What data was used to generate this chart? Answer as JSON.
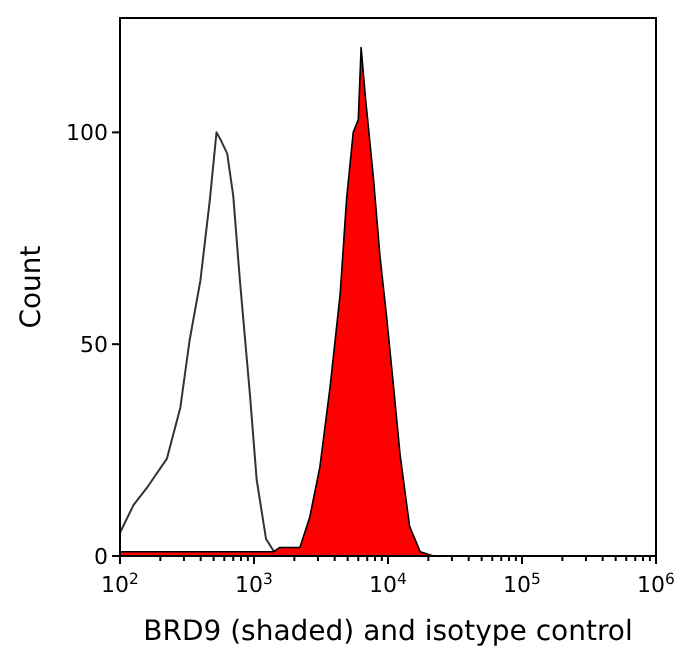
{
  "chart_data": {
    "type": "area",
    "xlabel": "BRD9 (shaded) and isotype control",
    "ylabel": "Count",
    "log": "x",
    "grid": false,
    "xlim": [
      100,
      1000000
    ],
    "ylim": [
      0,
      127
    ],
    "xticks": [
      {
        "value": 100,
        "label": "10$^{2}$"
      },
      {
        "value": 200,
        "label": null
      },
      {
        "value": 300,
        "label": null
      },
      {
        "value": 400,
        "label": null
      },
      {
        "value": 500,
        "label": null
      },
      {
        "value": 600,
        "label": null
      },
      {
        "value": 700,
        "label": null
      },
      {
        "value": 800,
        "label": null
      },
      {
        "value": 900,
        "label": null
      },
      {
        "value": 1000,
        "label": "10$^{3}$"
      },
      {
        "value": 2000,
        "label": null
      },
      {
        "value": 3000,
        "label": null
      },
      {
        "value": 4000,
        "label": null
      },
      {
        "value": 5000,
        "label": null
      },
      {
        "value": 6000,
        "label": null
      },
      {
        "value": 7000,
        "label": null
      },
      {
        "value": 8000,
        "label": null
      },
      {
        "value": 9000,
        "label": null
      },
      {
        "value": 10000,
        "label": "10$^{4}$"
      },
      {
        "value": 20000,
        "label": null
      },
      {
        "value": 30000,
        "label": null
      },
      {
        "value": 40000,
        "label": null
      },
      {
        "value": 50000,
        "label": null
      },
      {
        "value": 60000,
        "label": null
      },
      {
        "value": 70000,
        "label": null
      },
      {
        "value": 80000,
        "label": null
      },
      {
        "value": 90000,
        "label": null
      },
      {
        "value": 100000,
        "label": "10$^{5}$"
      },
      {
        "value": 200000,
        "label": null
      },
      {
        "value": 300000,
        "label": null
      },
      {
        "value": 400000,
        "label": null
      },
      {
        "value": 500000,
        "label": null
      },
      {
        "value": 600000,
        "label": null
      },
      {
        "value": 700000,
        "label": null
      },
      {
        "value": 800000,
        "label": null
      },
      {
        "value": 900000,
        "label": null
      },
      {
        "value": 1000000,
        "label": "10$^{6}$"
      }
    ],
    "yticks": [
      0,
      50,
      100
    ],
    "series": [
      {
        "type": "line",
        "color": "#333333",
        "x": [
          100,
          126,
          158,
          224,
          282,
          331,
          398,
          468,
          525,
          569,
          631,
          700,
          785,
          933,
          1047,
          1230,
          1480,
          1000000
        ],
        "values": [
          5.5,
          12,
          16,
          23,
          35,
          51,
          65,
          84,
          100,
          98,
          95,
          85,
          65,
          38,
          18,
          4,
          0,
          0
        ]
      },
      {
        "color": "#ff0000",
        "x": [
          100,
          1400,
          1550,
          2200,
          2600,
          3100,
          3700,
          4400,
          4900,
          5500,
          6000,
          6300,
          6800,
          7800,
          8700,
          9800,
          11000,
          12300,
          14500,
          17400,
          21900,
          1000000
        ],
        "values": [
          1,
          1,
          2,
          2,
          9,
          21,
          40,
          62,
          84,
          100,
          103,
          120,
          108,
          89,
          71,
          56,
          40,
          24,
          7,
          1,
          0,
          0
        ]
      }
    ]
  }
}
